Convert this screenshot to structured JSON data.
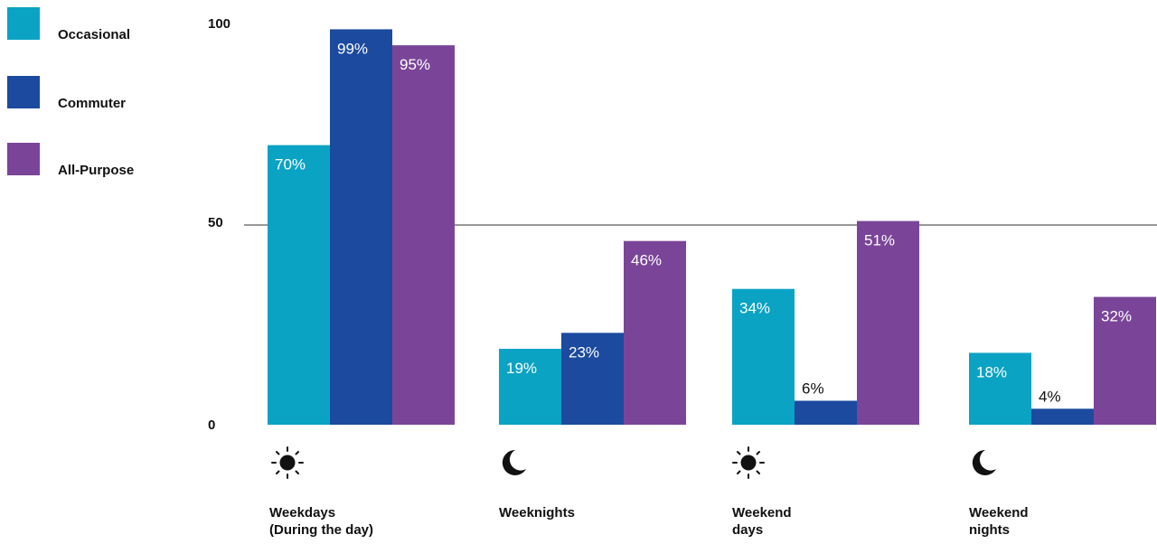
{
  "legend": [
    {
      "label": "Occasional",
      "color": "#0aa3c4"
    },
    {
      "label": "Commuter",
      "color": "#1b4a9f"
    },
    {
      "label": "All-Purpose",
      "color": "#7a4598"
    }
  ],
  "yticks": [
    "100",
    "50",
    "0"
  ],
  "categories": [
    {
      "line1": "Weekdays",
      "line2": "(During the day)",
      "icon": "sun-icon"
    },
    {
      "line1": "Weeknights",
      "line2": "",
      "icon": "moon-icon"
    },
    {
      "line1": "Weekend",
      "line2": "days",
      "icon": "sun-icon"
    },
    {
      "line1": "Weekend",
      "line2": "nights",
      "icon": "moon-icon"
    }
  ],
  "chart_data": {
    "type": "bar",
    "categories": [
      "Weekdays (During the day)",
      "Weeknights",
      "Weekend days",
      "Weekend nights"
    ],
    "series": [
      {
        "name": "Occasional",
        "values": [
          70,
          19,
          34,
          18
        ],
        "labels": [
          "70%",
          "19%",
          "34%",
          "18%"
        ]
      },
      {
        "name": "Commuter",
        "values": [
          99,
          23,
          6,
          4
        ],
        "labels": [
          "99%",
          "23%",
          "6%",
          "4%"
        ]
      },
      {
        "name": "All-Purpose",
        "values": [
          95,
          46,
          51,
          32
        ],
        "labels": [
          "95%",
          "46%",
          "51%",
          "32%"
        ]
      }
    ],
    "ylim": [
      0,
      100
    ],
    "yticks": [
      0,
      50,
      100
    ],
    "gridlines": [
      50
    ],
    "legend_position": "left"
  }
}
